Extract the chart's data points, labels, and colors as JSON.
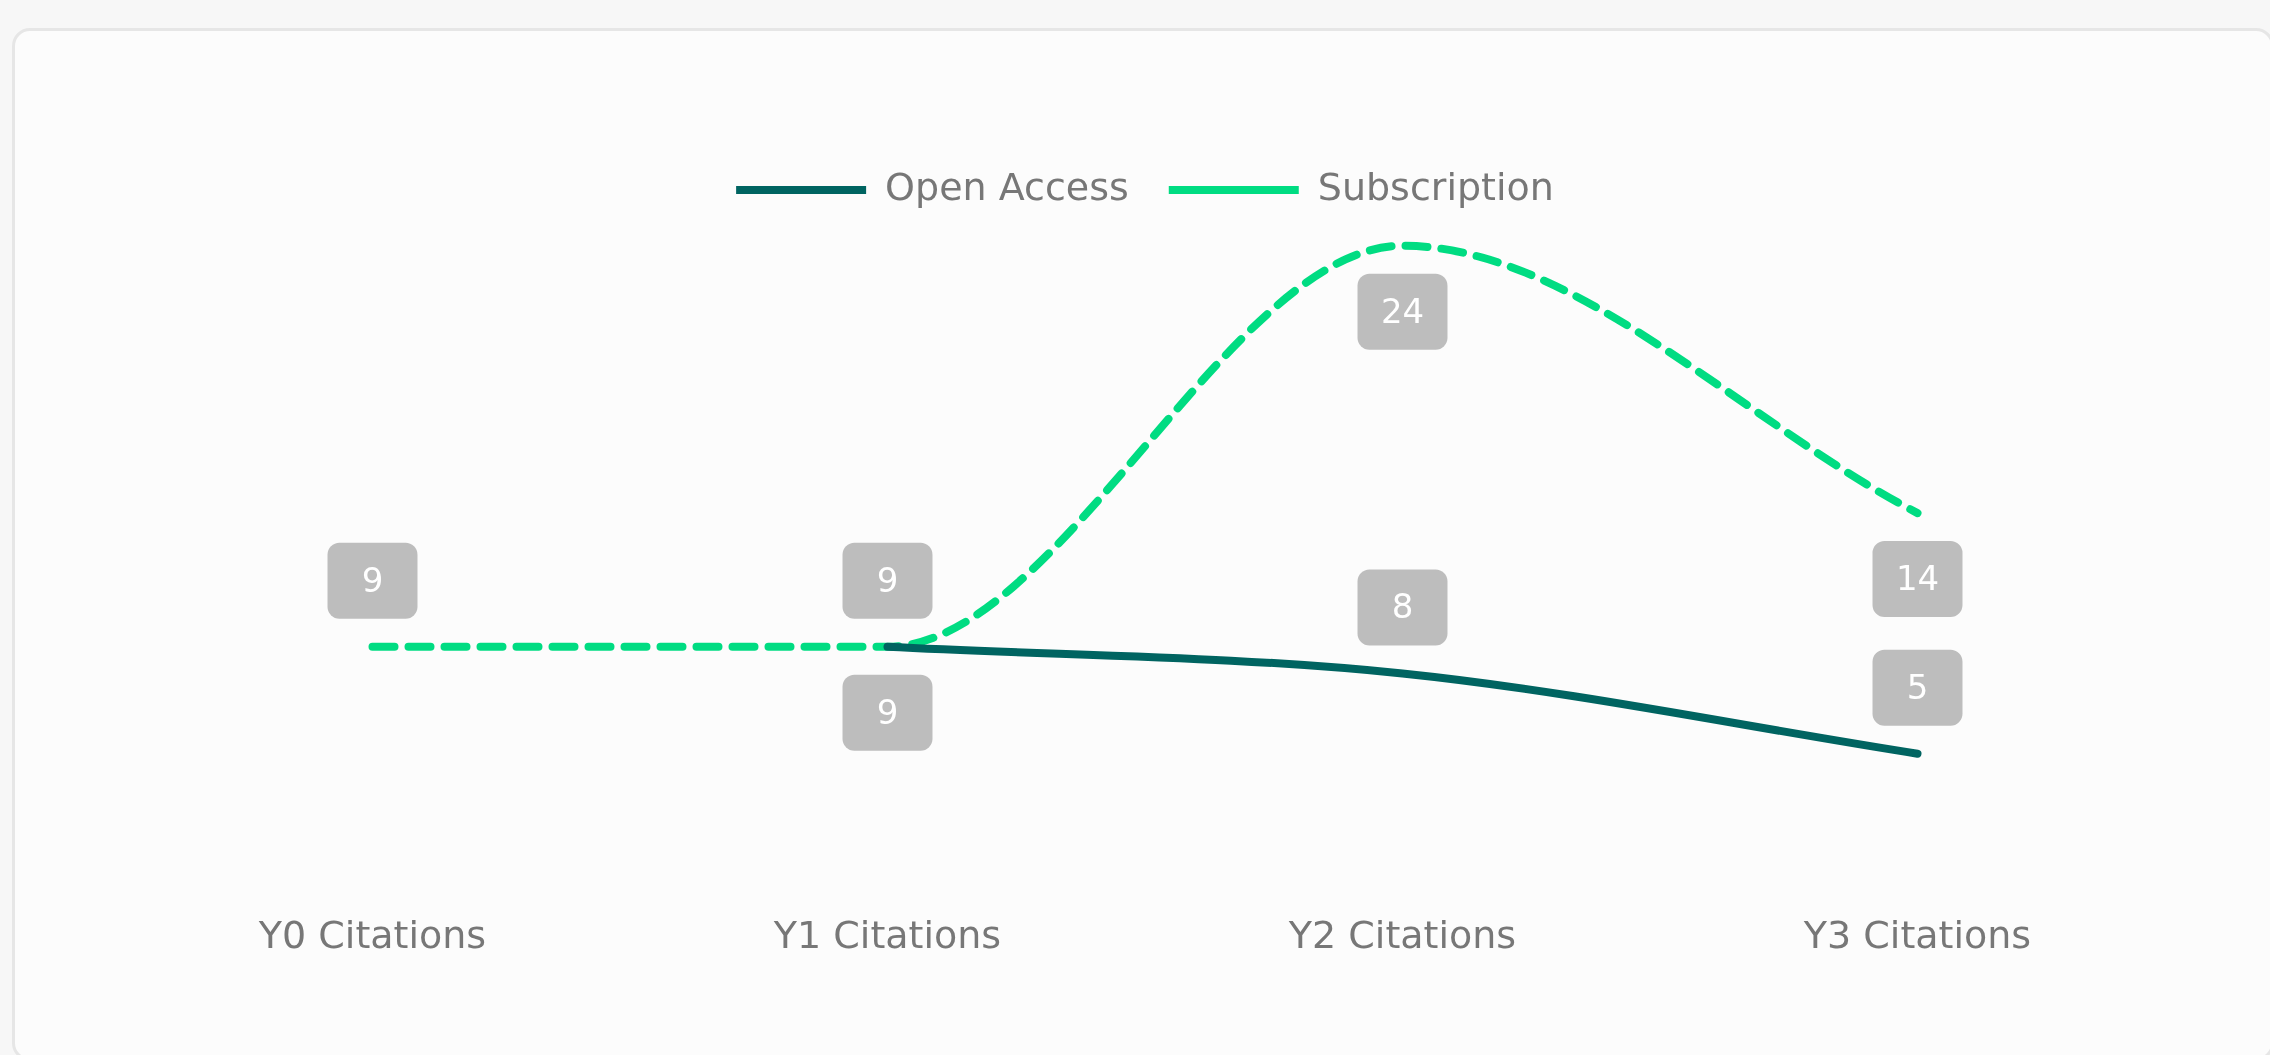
{
  "chart_data": {
    "type": "line",
    "legend": "top",
    "tick_labels": "x",
    "marker": "none",
    "data_labels": true,
    "categories": [
      "Y0 Citations",
      "Y1 Citations",
      "Y2 Citations",
      "Y3 Citations"
    ],
    "series": [
      {
        "name": "Open Access",
        "color": "#006461",
        "line_style": "solid",
        "values": [
          null,
          9,
          8,
          5
        ]
      },
      {
        "name": "Subscription",
        "color": "#00dc82",
        "line_style": "dashed",
        "values": [
          9,
          9,
          24,
          14
        ]
      }
    ]
  }
}
